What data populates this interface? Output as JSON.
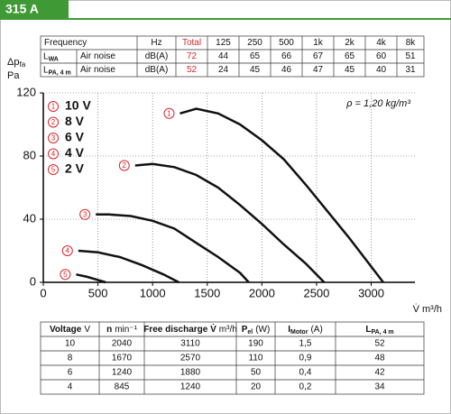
{
  "header": {
    "title": "315 A"
  },
  "noise_table": {
    "header": [
      "Frequency",
      "Hz",
      "Total",
      "125",
      "250",
      "500",
      "1k",
      "2k",
      "4k",
      "8k"
    ],
    "rows": [
      {
        "symbol": "L",
        "symbol_sub": "WA",
        "label": "Air noise",
        "cells": [
          "dB(A)",
          "72",
          "44",
          "65",
          "66",
          "67",
          "65",
          "60",
          "51"
        ]
      },
      {
        "symbol": "L",
        "symbol_sub": "PA, 4 m",
        "label": "Air noise",
        "cells": [
          "dB(A)",
          "52",
          "24",
          "45",
          "46",
          "47",
          "45",
          "40",
          "31"
        ]
      }
    ],
    "total_color": "#d9262b"
  },
  "chart_data": {
    "type": "line",
    "ylabel": "Δp",
    "ylabel_sub": "fa",
    "ylabel_unit": "Pa",
    "xlabel": "V̇ m³/h",
    "annotation": "ρ = 1,20 kg/m³",
    "xlim": [
      0,
      3400
    ],
    "ylim": [
      0,
      120
    ],
    "xticks": [
      0,
      500,
      1000,
      1500,
      2000,
      2500,
      3000
    ],
    "yticks": [
      0,
      40,
      80,
      120
    ],
    "grid": true,
    "marker_color": "#d9262b",
    "series": [
      {
        "name": "10 V",
        "marker": "1",
        "color": "#111",
        "x": [
          1250,
          1400,
          1600,
          1800,
          2000,
          2200,
          2400,
          2600,
          2800,
          3000,
          3110
        ],
        "values": [
          107,
          110,
          107,
          100,
          90,
          78,
          62,
          45,
          28,
          10,
          0
        ]
      },
      {
        "name": "8 V",
        "marker": "2",
        "color": "#111",
        "x": [
          840,
          1000,
          1200,
          1400,
          1600,
          1800,
          2000,
          2200,
          2400,
          2570
        ],
        "values": [
          74,
          75,
          73,
          68,
          60,
          49,
          37,
          24,
          12,
          0
        ]
      },
      {
        "name": "6 V",
        "marker": "3",
        "color": "#111",
        "x": [
          480,
          600,
          800,
          1000,
          1200,
          1400,
          1600,
          1800,
          1880
        ],
        "values": [
          43,
          43,
          42,
          39,
          34,
          25,
          16,
          6,
          0
        ]
      },
      {
        "name": "4 V",
        "marker": "4",
        "color": "#111",
        "x": [
          320,
          500,
          700,
          900,
          1100,
          1240
        ],
        "values": [
          20,
          19,
          16,
          11,
          5,
          0
        ]
      },
      {
        "name": "2 V",
        "marker": "5",
        "color": "#111",
        "x": [
          300,
          400,
          500,
          570
        ],
        "values": [
          5,
          3.5,
          1.5,
          0
        ]
      }
    ]
  },
  "data_table": {
    "header": [
      {
        "bold": "Voltage",
        "unit": "V"
      },
      {
        "bold": "n",
        "unit": "min⁻¹"
      },
      {
        "bold": "Free discharge V̇",
        "unit": "m³/h"
      },
      {
        "bold": "P",
        "sub": "el",
        "unit": "(W)"
      },
      {
        "bold": "I",
        "sub": "Motor",
        "unit": "(A)"
      },
      {
        "bold": "L",
        "sub": "PA, 4 m"
      }
    ],
    "rows": [
      [
        "10",
        "2040",
        "3110",
        "190",
        "1,5",
        "52"
      ],
      [
        "8",
        "1670",
        "2570",
        "110",
        "0,9",
        "48"
      ],
      [
        "6",
        "1240",
        "1880",
        "50",
        "0,4",
        "42"
      ],
      [
        "4",
        "845",
        "1240",
        "20",
        "0,2",
        "34"
      ]
    ]
  }
}
